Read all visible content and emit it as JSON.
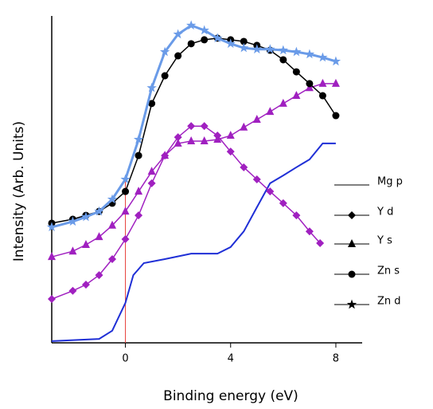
{
  "chart_data": {
    "type": "line",
    "xlabel": "Binding energy (eV)",
    "ylabel": "Intensity (Arb. Units)",
    "xlim": [
      -2.8,
      9
    ],
    "ylim": [
      0,
      100
    ],
    "xticks": [
      0,
      4,
      8
    ],
    "vline": {
      "x": 0,
      "color": "#e8413c"
    },
    "legend": "right",
    "series": [
      {
        "name": "Mg p",
        "color": "#1f2fd6",
        "marker": "none",
        "x": [
          -2.8,
          -1,
          -0.5,
          0,
          0.3,
          0.7,
          1.5,
          2.5,
          3.5,
          4,
          4.5,
          5,
          5.5,
          6,
          6.5,
          7,
          7.5,
          8
        ],
        "values": [
          0.5,
          1.2,
          3.7,
          12.2,
          20.7,
          24.4,
          25.6,
          27.3,
          27.3,
          29.3,
          34.1,
          41.5,
          48.8,
          51.2,
          53.7,
          56.1,
          61,
          61
        ]
      },
      {
        "name": "Y d",
        "color": "#a020c0",
        "marker": "diamond",
        "x": [
          -2.8,
          -2,
          -1.5,
          -1,
          -0.5,
          0,
          0.5,
          1,
          1.5,
          2,
          2.5,
          3,
          3.5,
          4,
          4.5,
          5,
          5.5,
          6,
          6.5,
          7,
          7.4
        ],
        "values": [
          13.4,
          15.9,
          17.8,
          20.7,
          25.6,
          31.7,
          39,
          48.8,
          57.3,
          62.9,
          66.3,
          66.3,
          63.4,
          58.5,
          53.7,
          50,
          46.3,
          42.7,
          39,
          34.1,
          30.5
        ]
      },
      {
        "name": "Y s",
        "color": "#a020c0",
        "marker": "triangle",
        "x": [
          -2.8,
          -2,
          -1.5,
          -1,
          -0.5,
          0,
          0.5,
          1,
          1.5,
          2,
          2.5,
          3,
          3.5,
          4,
          4.5,
          5,
          5.5,
          6,
          6.5,
          7,
          7.5,
          8
        ],
        "values": [
          26.3,
          28,
          30,
          32.4,
          35.9,
          40.2,
          46.3,
          52.4,
          57.3,
          61,
          61.7,
          61.7,
          62.2,
          63.4,
          65.9,
          68.3,
          70.7,
          73.2,
          75.6,
          78,
          79.3,
          79.3
        ]
      },
      {
        "name": "Zn s",
        "color": "#000000",
        "marker": "circle",
        "x": [
          -2.8,
          -2,
          -1.5,
          -1,
          -0.5,
          0,
          0.5,
          1,
          1.5,
          2,
          2.5,
          3,
          3.5,
          4,
          4.5,
          5,
          5.5,
          6,
          6.5,
          7,
          7.5,
          8
        ],
        "values": [
          36.6,
          37.8,
          39,
          40.2,
          42.7,
          46.3,
          57.3,
          73.2,
          81.7,
          87.8,
          91.5,
          92.7,
          93.2,
          92.7,
          92.2,
          91,
          89.5,
          86.6,
          82.9,
          79.3,
          75.6,
          69.5
        ]
      },
      {
        "name": "Zn d",
        "color": "#6a9be8",
        "marker": "star",
        "x": [
          -2.8,
          -2,
          -1.5,
          -1,
          -0.5,
          0,
          0.5,
          1,
          1.5,
          2,
          2.5,
          3,
          3.5,
          4,
          4.5,
          5,
          5.5,
          6,
          6.5,
          7,
          7.5,
          8
        ],
        "values": [
          35.4,
          37.1,
          38.5,
          40.2,
          43.9,
          50,
          62.2,
          78,
          89,
          94.4,
          97.1,
          95.6,
          93.2,
          91.5,
          90.2,
          89.8,
          89.8,
          89.5,
          89,
          88.3,
          87.3,
          86.1
        ]
      }
    ]
  }
}
